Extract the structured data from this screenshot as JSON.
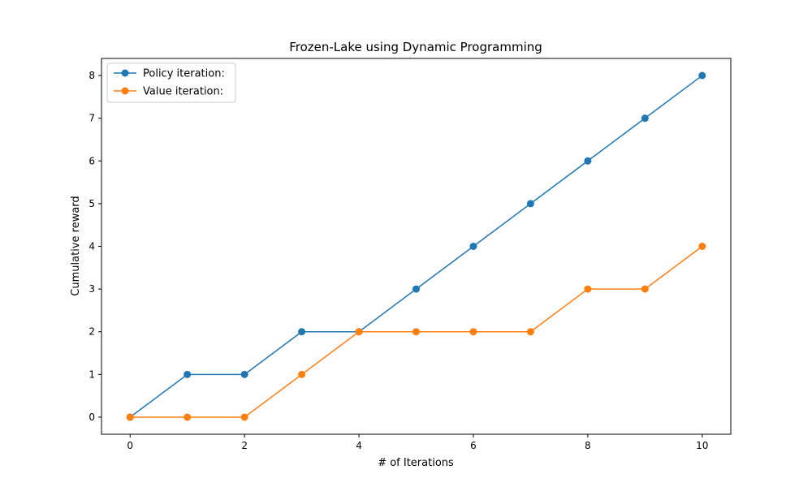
{
  "chart_data": {
    "type": "line",
    "title": "Frozen-Lake using Dynamic Programming",
    "xlabel": "# of Iterations",
    "ylabel": "Cumulative reward",
    "x": [
      0,
      1,
      2,
      3,
      4,
      5,
      6,
      7,
      8,
      9,
      10
    ],
    "xlim": [
      -0.5,
      10.5
    ],
    "ylim": [
      -0.4,
      8.4
    ],
    "xticks": [
      0,
      2,
      4,
      6,
      8,
      10
    ],
    "yticks": [
      0,
      1,
      2,
      3,
      4,
      5,
      6,
      7,
      8
    ],
    "grid": false,
    "legend_position": "top-left",
    "series": [
      {
        "name": "Policy iteration:",
        "color": "#1f77b4",
        "values": [
          0,
          1,
          1,
          2,
          2,
          3,
          4,
          5,
          6,
          7,
          8
        ]
      },
      {
        "name": "Value iteration:",
        "color": "#ff7f0e",
        "values": [
          0,
          0,
          0,
          1,
          2,
          2,
          2,
          2,
          3,
          3,
          4
        ]
      }
    ]
  }
}
